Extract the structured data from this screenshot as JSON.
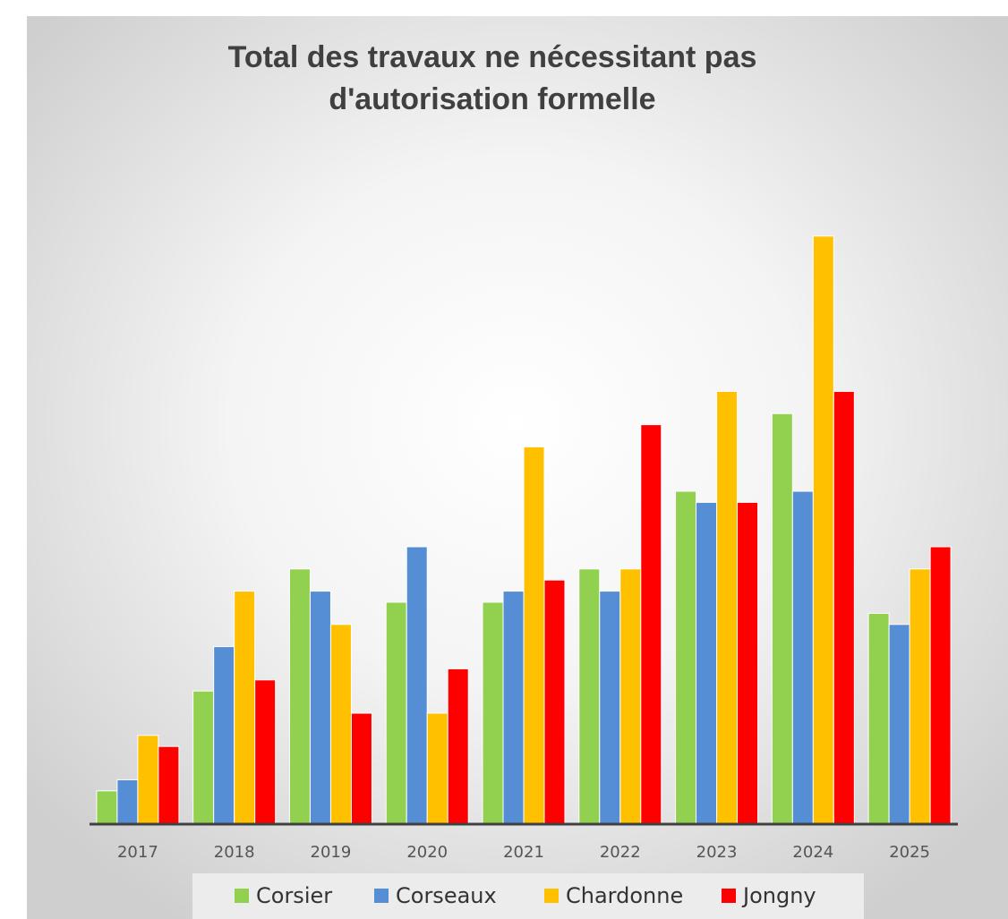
{
  "chart_data": {
    "type": "bar",
    "title": [
      "Total des travaux ne nécessitant pas",
      "d'autorisation formelle"
    ],
    "categories": [
      "2017",
      "2018",
      "2019",
      "2020",
      "2021",
      "2022",
      "2023",
      "2024",
      "2025"
    ],
    "series": [
      {
        "name": "Corsier",
        "color": "#92d050",
        "values": [
          3,
          12,
          23,
          20,
          20,
          23,
          30,
          37,
          19
        ]
      },
      {
        "name": "Corseaux",
        "color": "#558ed5",
        "values": [
          4,
          16,
          21,
          25,
          21,
          21,
          29,
          30,
          18
        ]
      },
      {
        "name": "Chardonne",
        "color": "#ffc000",
        "values": [
          8,
          21,
          18,
          10,
          34,
          23,
          39,
          53,
          23
        ]
      },
      {
        "name": "Jongny",
        "color": "#ff0000",
        "values": [
          7,
          13,
          10,
          14,
          22,
          36,
          29,
          39,
          25
        ]
      }
    ],
    "ylim": [
      0,
      60
    ]
  }
}
